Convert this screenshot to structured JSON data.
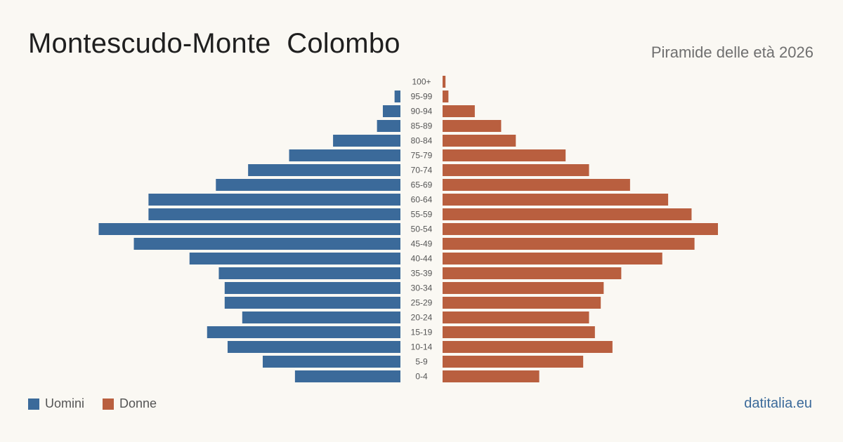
{
  "header": {
    "title": "Montescudo-Monte  Colombo",
    "subtitle": "Piramide delle età 2026"
  },
  "legend": {
    "male_label": "Uomini",
    "female_label": "Donne"
  },
  "brand": "datitalia.eu",
  "colors": {
    "male": "#3b6a9a",
    "female": "#b95f3f"
  },
  "chart_data": {
    "type": "bar",
    "orientation": "horizontal-pyramid",
    "categories": [
      "100+",
      "95-99",
      "90-94",
      "85-89",
      "80-84",
      "75-79",
      "70-74",
      "65-69",
      "60-64",
      "55-59",
      "50-54",
      "45-49",
      "40-44",
      "35-39",
      "30-34",
      "25-29",
      "20-24",
      "15-19",
      "10-14",
      "5-9",
      "0-4"
    ],
    "series": [
      {
        "name": "Uomini",
        "values": [
          0,
          2,
          6,
          8,
          23,
          38,
          52,
          63,
          86,
          86,
          103,
          91,
          72,
          62,
          60,
          60,
          54,
          66,
          59,
          47,
          36
        ]
      },
      {
        "name": "Donne",
        "values": [
          1,
          2,
          11,
          20,
          25,
          42,
          50,
          64,
          77,
          85,
          94,
          86,
          75,
          61,
          55,
          54,
          50,
          52,
          58,
          48,
          33
        ]
      }
    ]
  }
}
